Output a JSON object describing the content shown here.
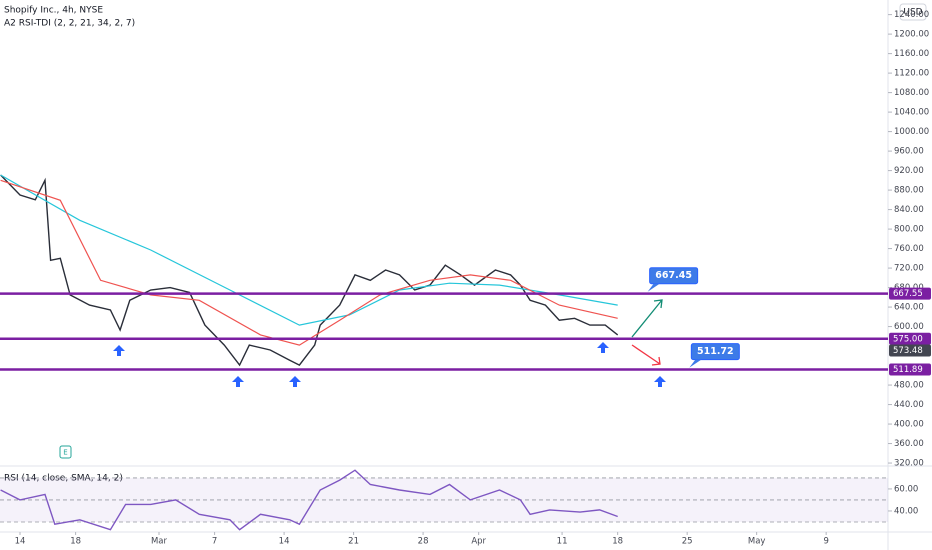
{
  "chart_data": [
    {
      "type": "line",
      "title": "Shopify Inc., 4h, NYSE",
      "subtitle": "A2 RSI-TDI (2, 2, 21, 34, 2, 7)",
      "currency": "USD",
      "xlim": [
        -1.44,
        62.45
      ],
      "ylim": [
        316,
        1270
      ],
      "yticks": [
        {
          "value": 1240,
          "label": "1240.00"
        },
        {
          "value": 1200,
          "label": "1200.00"
        },
        {
          "value": 1160,
          "label": "1160.00"
        },
        {
          "value": 1120,
          "label": "1120.00"
        },
        {
          "value": 1080,
          "label": "1080.00"
        },
        {
          "value": 1040,
          "label": "1040.00"
        },
        {
          "value": 1000,
          "label": "1000.00"
        },
        {
          "value": 960,
          "label": "960.00"
        },
        {
          "value": 920,
          "label": "920.00"
        },
        {
          "value": 880,
          "label": "880.00"
        },
        {
          "value": 840,
          "label": "840.00"
        },
        {
          "value": 800,
          "label": "800.00"
        },
        {
          "value": 760,
          "label": "760.00"
        },
        {
          "value": 720,
          "label": "720.00"
        },
        {
          "value": 680,
          "label": "680.00"
        },
        {
          "value": 640,
          "label": "640.00"
        },
        {
          "value": 600,
          "label": "600.00"
        },
        {
          "value": 480,
          "label": "480.00"
        },
        {
          "value": 440,
          "label": "440.00"
        },
        {
          "value": 400,
          "label": "400.00"
        },
        {
          "value": 360,
          "label": "360.00"
        },
        {
          "value": 320,
          "label": "320.00"
        }
      ],
      "series": [
        {
          "color": "#2a2e39",
          "x": [
            -1.4,
            0,
            1.1,
            1.8,
            2.2,
            2.9,
            3.6,
            5.0,
            6.5,
            7.2,
            7.9,
            9.4,
            10.8,
            12.2,
            13.3,
            14.7,
            15.8,
            16.5,
            18.0,
            19.4,
            20.1,
            21.2,
            21.6,
            23.0,
            24.1,
            25.2,
            26.3,
            27.3,
            28.4,
            29.5,
            30.6,
            31.7,
            32.7,
            34.2,
            35.3,
            36.0,
            36.7,
            37.8,
            38.8,
            39.9,
            41.0,
            42.1,
            43.0
          ],
          "values": [
            911,
            870,
            860,
            900,
            736,
            740,
            665,
            644,
            634,
            593,
            654,
            675,
            680,
            670,
            603,
            562,
            521,
            562,
            552,
            531,
            521,
            562,
            603,
            644,
            706,
            695,
            716,
            706,
            675,
            685,
            726,
            706,
            685,
            716,
            706,
            685,
            654,
            644,
            613,
            617,
            603,
            603,
            583
          ]
        },
        {
          "color": "#26c6da",
          "x": [
            -1.4,
            4.3,
            9.4,
            15.1,
            20.1,
            23.7,
            27.3,
            30.9,
            34.5,
            38.8,
            43.0
          ],
          "values": [
            911,
            818,
            757,
            675,
            603,
            624,
            675,
            689,
            685,
            665,
            644
          ]
        },
        {
          "color": "#ef5350",
          "x": [
            -1.4,
            2.9,
            5.8,
            9.4,
            12.9,
            17.3,
            20.1,
            23.0,
            25.9,
            29.5,
            32.4,
            35.3,
            38.8,
            43.0
          ],
          "values": [
            900,
            859,
            695,
            665,
            654,
            583,
            562,
            613,
            665,
            695,
            706,
            695,
            644,
            617
          ]
        }
      ],
      "hlines": [
        {
          "value": 667.55,
          "color": "#7b1fa2"
        },
        {
          "value": {
            "value": 575,
            "label": "575.00"
          },
          "color": "#7b1fa2"
        },
        {
          "value": 511.89,
          "color": "#7b1fa2"
        }
      ],
      "last_price": 573.48,
      "annotations": [
        {
          "x": 45.3,
          "value": 667.45
        },
        {
          "x": 48.3,
          "value": 511.72
        }
      ]
    },
    {
      "type": "line",
      "title": "RSI (14, close, SMA, 14, 2)",
      "xlim": [
        -1.44,
        62.45
      ],
      "ylim": [
        20.9,
        79
      ],
      "yticks": [
        {
          "value": 60,
          "label": "60.00"
        },
        {
          "value": 40,
          "label": "40.00"
        }
      ],
      "levels": [
        70,
        50,
        30
      ],
      "xticks": [
        {
          "value": 0,
          "label": "14"
        },
        {
          "value": 4,
          "label": "18"
        },
        {
          "value": 10,
          "label": "Mar"
        },
        {
          "value": 14,
          "label": "7"
        },
        {
          "value": 19,
          "label": "14"
        },
        {
          "value": 24,
          "label": "21"
        },
        {
          "value": 29,
          "label": "28"
        },
        {
          "value": 33,
          "label": "Apr"
        },
        {
          "value": 39,
          "label": "11"
        },
        {
          "value": 43,
          "label": "18"
        },
        {
          "value": 48,
          "label": "25"
        },
        {
          "value": 53,
          "label": "May"
        },
        {
          "value": 58,
          "label": "9"
        }
      ],
      "series": [
        {
          "color": "#7e57c2",
          "x": [
            -1.4,
            0,
            1.8,
            2.5,
            4.3,
            6.5,
            7.6,
            9.4,
            11.2,
            12.9,
            15.1,
            15.8,
            17.3,
            19.4,
            20.1,
            21.6,
            23.0,
            24.1,
            25.2,
            27.3,
            29.5,
            30.9,
            32.4,
            34.5,
            36.0,
            36.7,
            38.1,
            40.3,
            41.7,
            43.0
          ],
          "values": [
            59,
            50,
            55,
            28,
            32,
            23,
            46,
            46,
            50,
            37,
            32,
            23,
            37,
            32,
            28,
            59,
            68,
            77,
            64,
            59,
            55,
            64,
            50,
            59,
            50,
            37,
            41,
            39,
            41,
            35
          ]
        }
      ]
    }
  ]
}
